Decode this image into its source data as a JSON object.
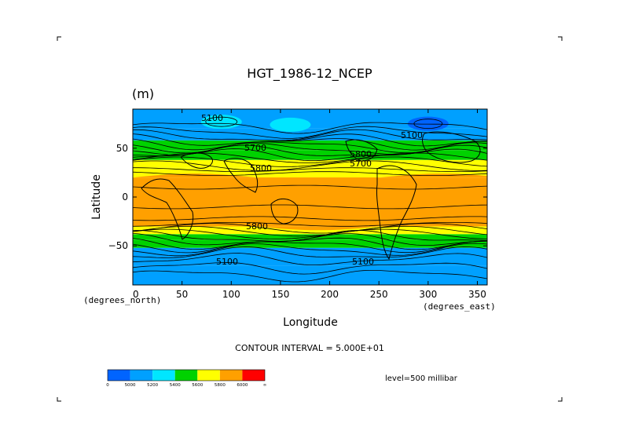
{
  "chart_data": {
    "type": "heatmap",
    "title": "HGT_1986-12_NCEP",
    "units": "(m)",
    "xlabel": "Longitude",
    "ylabel": "Latitude",
    "x_units": "(degrees_east)",
    "y_units": "(degrees_north)",
    "xlim": [
      0,
      360
    ],
    "ylim": [
      -90,
      90
    ],
    "x_ticks": [
      0,
      50,
      100,
      150,
      200,
      250,
      300,
      350
    ],
    "y_ticks": [
      50,
      0,
      -50
    ],
    "y_tick_labels": [
      "50",
      "0",
      "−50"
    ],
    "contour_interval_text": "CONTOUR INTERVAL = 5.000E+01",
    "level_text": "level=500 millibar",
    "contour_labels": [
      "5100",
      "5100",
      "5100",
      "5700",
      "5800",
      "5700",
      "5800",
      "5100",
      "5800"
    ],
    "colorbar": {
      "levels": [
        "0",
        "5000",
        "5200",
        "5400",
        "5600",
        "5800",
        "6000",
        "∞"
      ],
      "colors": [
        "#0064ff",
        "#00a0ff",
        "#00e6ff",
        "#00d200",
        "#ffff00",
        "#ffa000",
        "#ff0000"
      ]
    },
    "zonal_profile": {
      "lat_bands": [
        [
          -90,
          -70
        ],
        [
          -70,
          -52
        ],
        [
          -52,
          -44
        ],
        [
          -44,
          -38
        ],
        [
          -38,
          -30
        ],
        [
          -30,
          20
        ],
        [
          20,
          30
        ],
        [
          30,
          38
        ],
        [
          38,
          48
        ],
        [
          48,
          58
        ],
        [
          58,
          70
        ],
        [
          70,
          90
        ]
      ],
      "band_colors": [
        "#00a0ff",
        "#00a0ff",
        "#00d200",
        "#00d200",
        "#ffff00",
        "#ffa000",
        "#ffff00",
        "#ffff00",
        "#00d200",
        "#00d200",
        "#00a0ff",
        "#00a0ff"
      ]
    },
    "features": [
      {
        "lon": 90,
        "lat": 77,
        "color": "#00e6ff",
        "label": "arctic-high-1"
      },
      {
        "lon": 300,
        "lat": 75,
        "color": "#0064ff",
        "label": "polar-low"
      },
      {
        "lon": 160,
        "lat": 74,
        "color": "#00e6ff",
        "label": "arctic-high-2"
      }
    ]
  }
}
